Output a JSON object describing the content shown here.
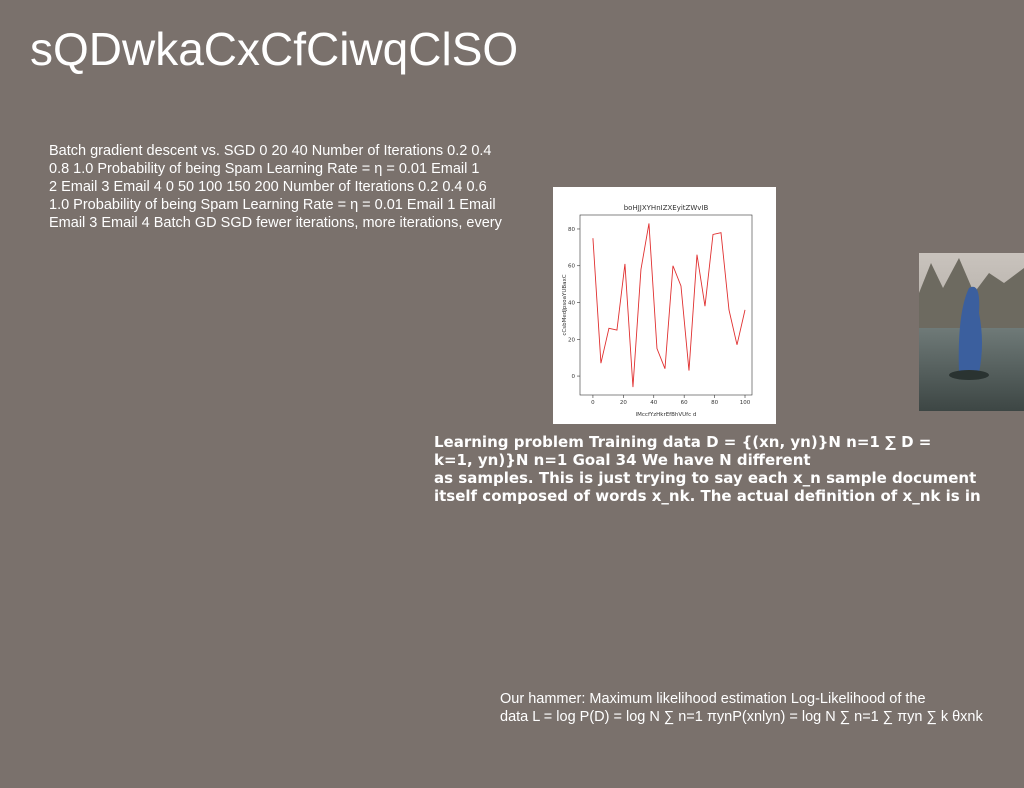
{
  "slide": {
    "title": "sQDwkaCxCfCiwqClSO",
    "left_text": [
      "Batch gradient descent vs. SGD 0 20 40 Number of Iterations 0.2 0.4",
      "0.8 1.0 Probability of being Spam Learning Rate = η = 0.01 Email 1",
      "2 Email 3 Email 4 0 50 100 150 200 Number of Iterations 0.2 0.4 0.6",
      "1.0 Probability of being Spam Learning Rate = η = 0.01 Email 1 Email",
      "Email 3 Email 4 Batch GD SGD fewer iterations, more iterations, every"
    ],
    "middle_text": [
      "Learning problem Training data D = {(xn, yn)}N n=1 ∑ D =",
      "k=1, yn)}N n=1 Goal 34 We have N different",
      "as samples. This is just trying to say each x_n sample document",
      "itself composed of words x_nk. The actual definition of x_nk is in"
    ],
    "bottom_text": [
      "Our hammer: Maximum likelihood estimation Log-Likelihood of the",
      "data L = log P(D) = log N ∑ n=1 πynP(xnlyn) = log N ∑ n=1 ∑ πyn ∑ k θxnk"
    ]
  },
  "chart_data": {
    "type": "line",
    "title": "boHJJXYHnIZXEyitZWvIB",
    "x_label": "lMccfYzHkrEfBhVUfc d",
    "y_label": "cCsbMedJpsoaYUBaxC",
    "x": [
      0,
      5.26,
      10.53,
      15.79,
      21.05,
      26.32,
      31.58,
      36.84,
      42.11,
      47.37,
      52.63,
      57.89,
      63.16,
      68.42,
      73.68,
      78.95,
      84.21,
      89.47,
      94.74,
      100
    ],
    "series": [
      {
        "color": "#e03030",
        "values": [
          75,
          7,
          26,
          25,
          61,
          -6,
          58,
          83,
          15,
          4,
          60,
          49,
          3,
          66,
          38,
          77,
          78,
          36,
          17,
          36
        ]
      }
    ],
    "xlim": [
      -8.5,
      104.6
    ],
    "ylim": [
      -10.3,
      87.6
    ],
    "xticks": [
      0,
      20,
      40,
      60,
      80,
      100
    ],
    "yticks": [
      0,
      20,
      40,
      60,
      80
    ]
  }
}
